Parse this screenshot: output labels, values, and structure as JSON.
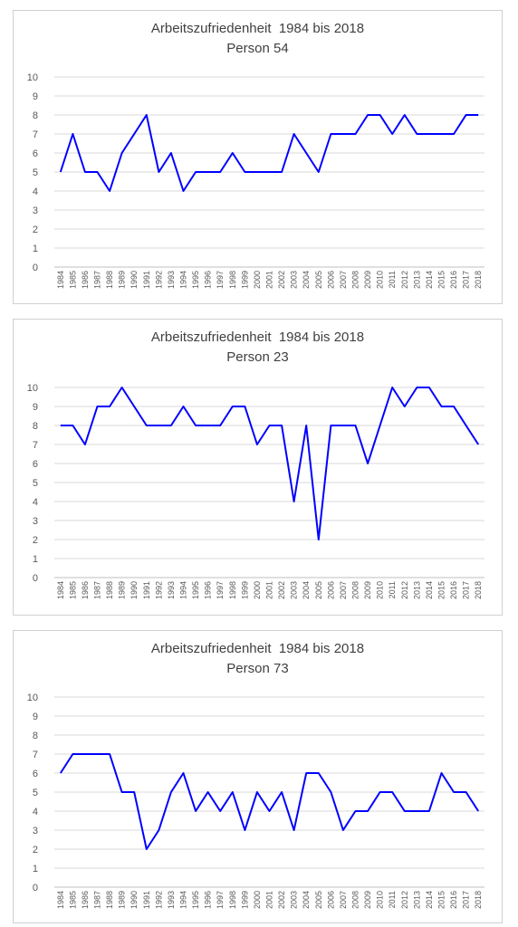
{
  "chart_data": [
    {
      "type": "line",
      "title": "Arbeitszufriedenheit  1984 bis 2018",
      "subtitle": "Person 54",
      "categories": [
        "1984",
        "1985",
        "1986",
        "1987",
        "1988",
        "1989",
        "1990",
        "1991",
        "1992",
        "1993",
        "1994",
        "1995",
        "1996",
        "1997",
        "1998",
        "1999",
        "2000",
        "2001",
        "2002",
        "2003",
        "2004",
        "2005",
        "2006",
        "2007",
        "2008",
        "2009",
        "2010",
        "2011",
        "2012",
        "2013",
        "2014",
        "2015",
        "2016",
        "2017",
        "2018"
      ],
      "values": [
        5,
        7,
        5,
        5,
        4,
        6,
        7,
        8,
        5,
        6,
        4,
        5,
        5,
        5,
        6,
        5,
        5,
        5,
        5,
        7,
        6,
        5,
        7,
        7,
        7,
        8,
        8,
        7,
        8,
        7,
        7,
        7,
        7,
        8,
        8
      ],
      "ylim": [
        0,
        10
      ],
      "yticks": [
        "0",
        "1",
        "2",
        "3",
        "4",
        "5",
        "6",
        "7",
        "8",
        "9",
        "10"
      ],
      "grid": true,
      "color": "#0000ff"
    },
    {
      "type": "line",
      "title": "Arbeitszufriedenheit  1984 bis 2018",
      "subtitle": "Person 23",
      "categories": [
        "1984",
        "1985",
        "1986",
        "1987",
        "1988",
        "1989",
        "1990",
        "1991",
        "1992",
        "1993",
        "1994",
        "1995",
        "1996",
        "1997",
        "1998",
        "1999",
        "2000",
        "2001",
        "2002",
        "2003",
        "2004",
        "2005",
        "2006",
        "2007",
        "2008",
        "2009",
        "2010",
        "2011",
        "2012",
        "2013",
        "2014",
        "2015",
        "2016",
        "2017",
        "2018"
      ],
      "values": [
        8,
        8,
        7,
        9,
        9,
        10,
        9,
        8,
        8,
        8,
        9,
        8,
        8,
        8,
        9,
        9,
        7,
        8,
        8,
        4,
        8,
        2,
        8,
        8,
        8,
        6,
        8,
        10,
        9,
        10,
        10,
        9,
        9,
        8,
        7
      ],
      "ylim": [
        0,
        10
      ],
      "yticks": [
        "0",
        "1",
        "2",
        "3",
        "4",
        "5",
        "6",
        "7",
        "8",
        "9",
        "10"
      ],
      "grid": true,
      "color": "#0000ff"
    },
    {
      "type": "line",
      "title": "Arbeitszufriedenheit  1984 bis 2018",
      "subtitle": "Person 73",
      "categories": [
        "1984",
        "1985",
        "1986",
        "1987",
        "1988",
        "1989",
        "1990",
        "1991",
        "1992",
        "1993",
        "1994",
        "1995",
        "1996",
        "1997",
        "1998",
        "1999",
        "2000",
        "2001",
        "2002",
        "2003",
        "2004",
        "2005",
        "2006",
        "2007",
        "2008",
        "2009",
        "2010",
        "2011",
        "2012",
        "2013",
        "2014",
        "2015",
        "2016",
        "2017",
        "2018"
      ],
      "values": [
        6,
        7,
        7,
        7,
        7,
        5,
        5,
        2,
        3,
        5,
        6,
        4,
        5,
        4,
        5,
        3,
        5,
        4,
        5,
        3,
        6,
        6,
        5,
        3,
        4,
        4,
        5,
        5,
        4,
        4,
        4,
        6,
        5,
        5,
        4
      ],
      "ylim": [
        0,
        10
      ],
      "yticks": [
        "0",
        "1",
        "2",
        "3",
        "4",
        "5",
        "6",
        "7",
        "8",
        "9",
        "10"
      ],
      "grid": true,
      "color": "#0000ff"
    }
  ]
}
